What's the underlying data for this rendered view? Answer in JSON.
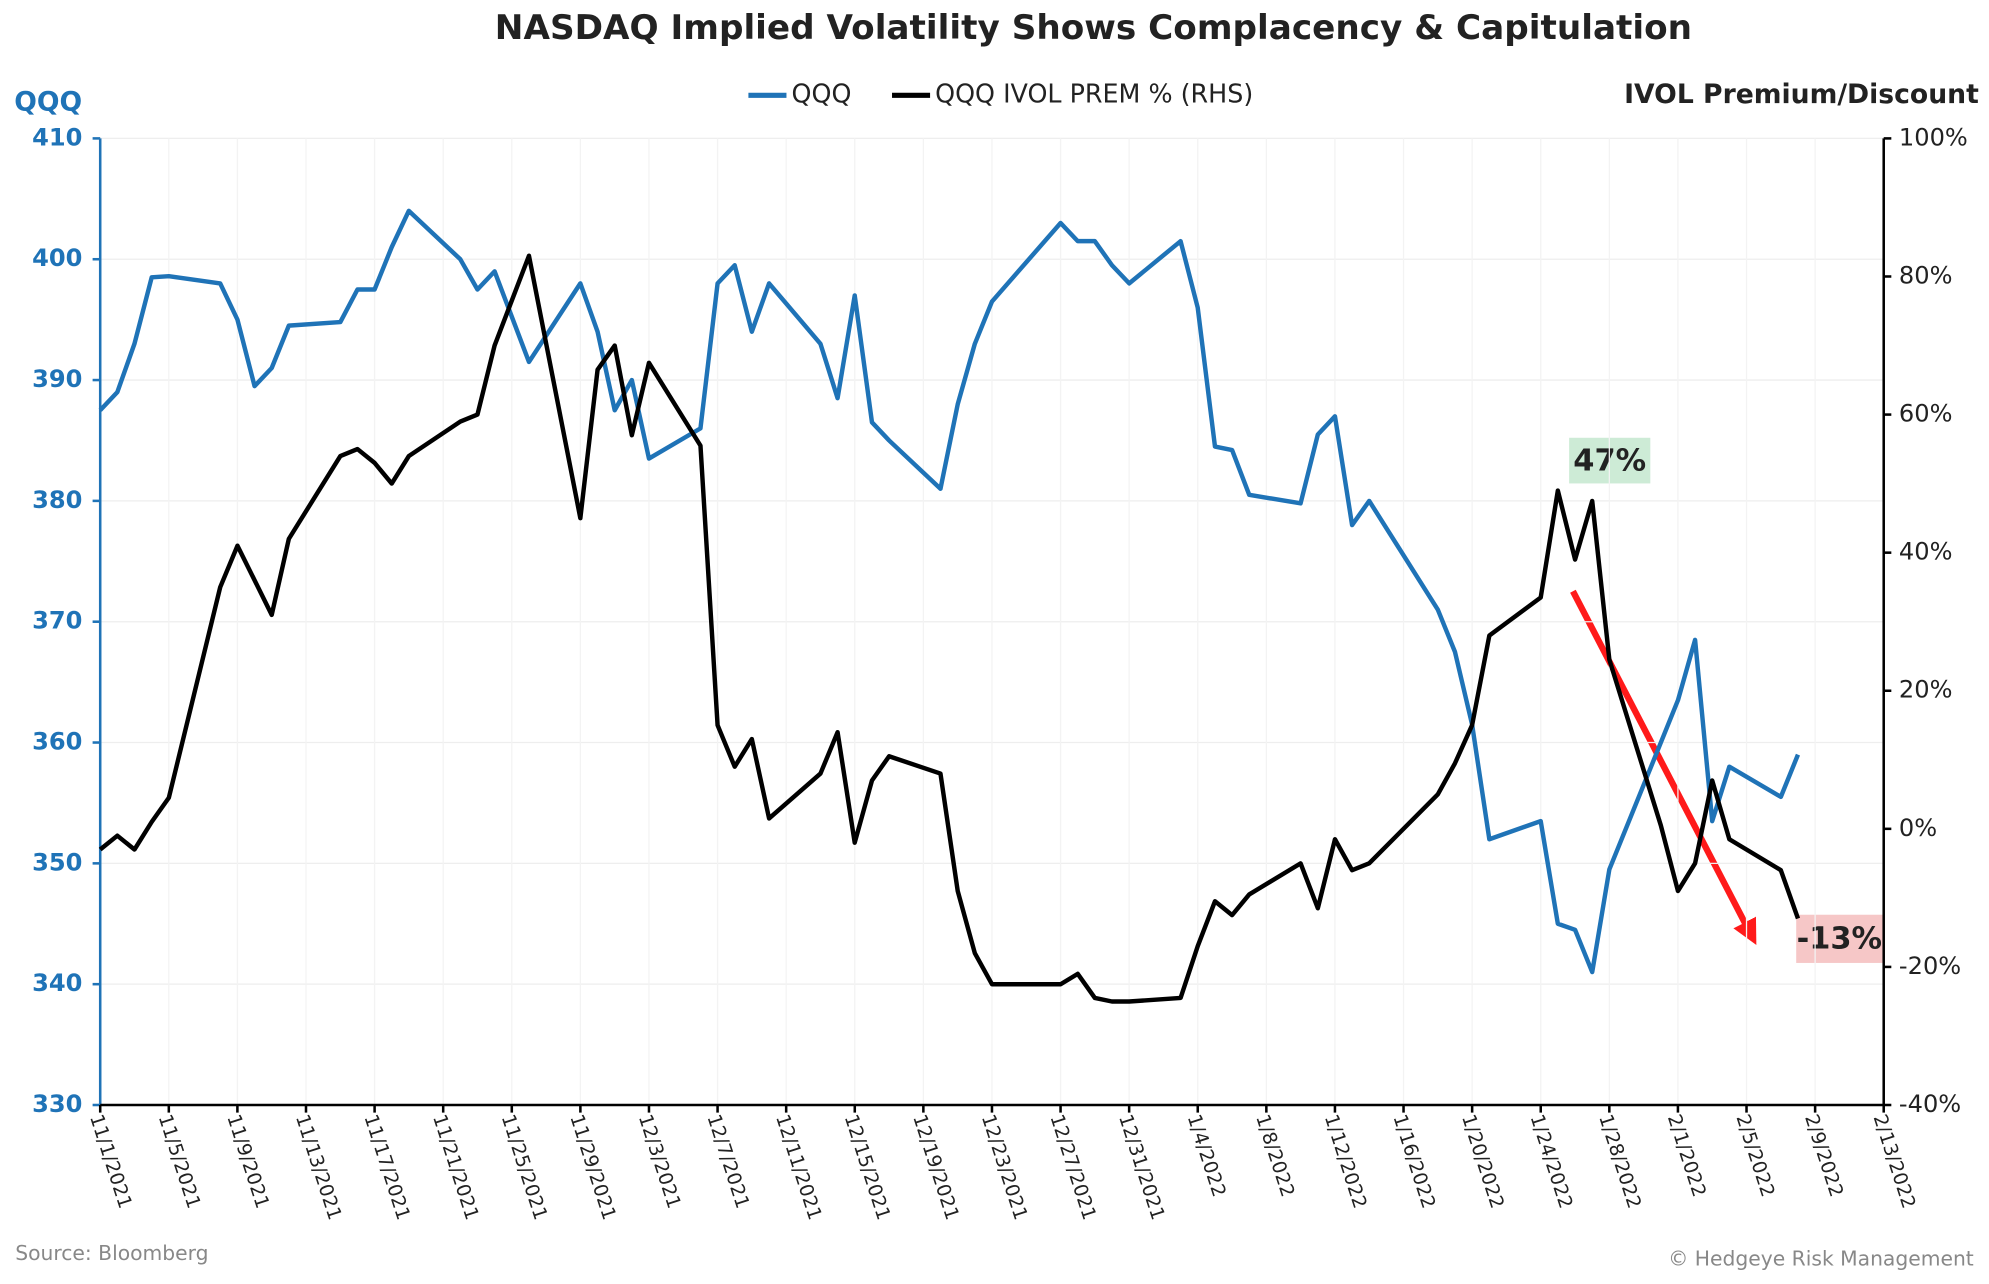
{
  "chart_data": {
    "type": "line",
    "title": "NASDAQ Implied Volatility Shows Complacency & Capitulation",
    "y_label": "QQQ",
    "y2_label": "IVOL Premium/Discount",
    "source": "Source: Bloomberg",
    "credit": "© Hedgeye Risk Management",
    "annotations": [
      "47%",
      "-13%"
    ],
    "grid": true,
    "x": [
      "11/1/2021",
      "11/2/2021",
      "11/3/2021",
      "11/4/2021",
      "11/5/2021",
      "11/8/2021",
      "11/9/2021",
      "11/10/2021",
      "11/11/2021",
      "11/12/2021",
      "11/15/2021",
      "11/16/2021",
      "11/17/2021",
      "11/18/2021",
      "11/19/2021",
      "11/22/2021",
      "11/23/2021",
      "11/24/2021",
      "11/26/2021",
      "11/29/2021",
      "11/30/2021",
      "12/1/2021",
      "12/2/2021",
      "12/3/2021",
      "12/6/2021",
      "12/7/2021",
      "12/8/2021",
      "12/9/2021",
      "12/10/2021",
      "12/13/2021",
      "12/14/2021",
      "12/15/2021",
      "12/16/2021",
      "12/17/2021",
      "12/20/2021",
      "12/21/2021",
      "12/22/2021",
      "12/23/2021",
      "12/27/2021",
      "12/28/2021",
      "12/29/2021",
      "12/30/2021",
      "12/31/2021",
      "1/3/2022",
      "1/4/2022",
      "1/5/2022",
      "1/6/2022",
      "1/7/2022",
      "1/10/2022",
      "1/11/2022",
      "1/12/2022",
      "1/13/2022",
      "1/14/2022",
      "1/18/2022",
      "1/19/2022",
      "1/20/2022",
      "1/21/2022",
      "1/24/2022",
      "1/25/2022",
      "1/26/2022",
      "1/27/2022",
      "1/28/2022",
      "1/31/2022",
      "2/1/2022",
      "2/2/2022",
      "2/3/2022",
      "2/4/2022",
      "2/7/2022",
      "2/8/2022"
    ],
    "series": [
      {
        "name": "QQQ",
        "color": "#1f73b7",
        "axis": "y",
        "values": [
          387.5,
          389,
          393,
          398.5,
          398.6,
          398,
          395,
          389.5,
          391,
          394.5,
          394.8,
          397.5,
          397.5,
          401,
          404,
          400,
          397.5,
          399,
          391.5,
          398,
          394,
          387.5,
          390,
          383.5,
          386,
          398,
          399.5,
          394,
          398,
          393,
          388.5,
          397,
          386.5,
          385,
          381,
          388,
          393,
          396.5,
          403,
          401.5,
          401.5,
          399.5,
          398,
          401.5,
          396,
          384.5,
          384.2,
          380.5,
          379.8,
          385.5,
          387,
          378,
          380,
          371,
          367.5,
          361.5,
          352,
          353.5,
          345,
          344.5,
          341,
          349.5,
          360,
          363.5,
          368.5,
          353.5,
          358,
          355.5,
          359
        ]
      },
      {
        "name": "QQQ IVOL PREM % (RHS)",
        "color": "#000000",
        "axis": "y2",
        "values": [
          -3,
          -1,
          -3,
          1,
          4.5,
          35,
          41,
          36,
          31,
          42,
          54,
          55,
          53,
          50,
          54,
          59,
          60,
          70,
          83,
          45,
          66.5,
          70,
          57,
          67.5,
          55.5,
          15,
          9,
          13,
          1.5,
          8,
          14,
          -2,
          7,
          10.5,
          8,
          -9,
          -18,
          -22.5,
          -22.5,
          -21,
          -24.5,
          -25,
          -25,
          -24.5,
          -17,
          -10.5,
          -12.5,
          -9.5,
          -5,
          -11.5,
          -1.5,
          -6,
          -5,
          5,
          9.5,
          15,
          28,
          33.5,
          49,
          39,
          47.5,
          24.5,
          0.5,
          -9,
          -5,
          7,
          -1.5,
          -6,
          -13
        ]
      }
    ],
    "xlim": [
      "11/1/2021",
      "2/13/2022"
    ],
    "xticks": [
      "11/1/2021",
      "11/5/2021",
      "11/9/2021",
      "11/13/2021",
      "11/17/2021",
      "11/21/2021",
      "11/25/2021",
      "11/29/2021",
      "12/3/2021",
      "12/7/2021",
      "12/11/2021",
      "12/15/2021",
      "12/19/2021",
      "12/23/2021",
      "12/27/2021",
      "12/31/2021",
      "1/4/2022",
      "1/8/2022",
      "1/12/2022",
      "1/16/2022",
      "1/20/2022",
      "1/24/2022",
      "1/28/2022",
      "2/1/2022",
      "2/5/2022",
      "2/9/2022",
      "2/13/2022"
    ],
    "ylim": [
      330,
      410
    ],
    "yticks": [
      330,
      340,
      350,
      360,
      370,
      380,
      390,
      400,
      410
    ],
    "y2lim": [
      -40,
      100
    ],
    "y2ticks": [
      {
        "value": -40,
        "label": "-40%"
      },
      {
        "value": -20,
        "label": "-20%"
      },
      {
        "value": 0,
        "label": "0%"
      },
      {
        "value": 20,
        "label": "20%"
      },
      {
        "value": 40,
        "label": "40%"
      },
      {
        "value": 60,
        "label": "60%"
      },
      {
        "value": 80,
        "label": "80%"
      },
      {
        "value": 100,
        "label": "100%"
      }
    ]
  }
}
